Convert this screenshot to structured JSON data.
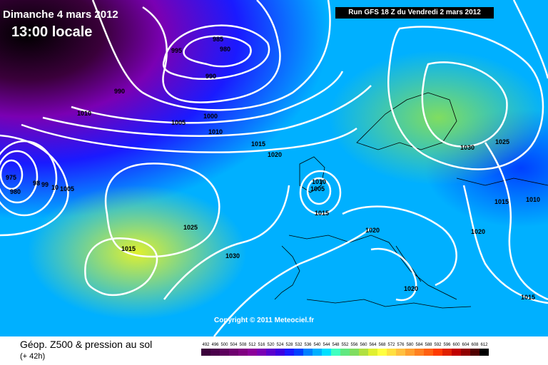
{
  "header": {
    "date": "Dimanche 4 mars 2012",
    "time": "13:00 locale",
    "run": "Run GFS 18 Z du Vendredi 2 mars 2012"
  },
  "copyright": "Copyright © 2011 Meteociel.fr",
  "legend": {
    "title": "Géop. Z500 & pression au sol",
    "subtitle": "(+ 42h)",
    "scale": [
      {
        "label": "492",
        "color": "#3a003a"
      },
      {
        "label": "496",
        "color": "#4a004a"
      },
      {
        "label": "500",
        "color": "#5c005c"
      },
      {
        "label": "504",
        "color": "#6e006e"
      },
      {
        "label": "508",
        "color": "#800080"
      },
      {
        "label": "512",
        "color": "#8c0099"
      },
      {
        "label": "516",
        "color": "#7a00b3"
      },
      {
        "label": "520",
        "color": "#5a00cc"
      },
      {
        "label": "524",
        "color": "#3c00e0"
      },
      {
        "label": "528",
        "color": "#1a1aff"
      },
      {
        "label": "532",
        "color": "#0040ff"
      },
      {
        "label": "536",
        "color": "#0080ff"
      },
      {
        "label": "540",
        "color": "#00b0ff"
      },
      {
        "label": "544",
        "color": "#00e0ff"
      },
      {
        "label": "548",
        "color": "#40ffc0"
      },
      {
        "label": "552",
        "color": "#60e880"
      },
      {
        "label": "556",
        "color": "#80dd60"
      },
      {
        "label": "560",
        "color": "#b0e040"
      },
      {
        "label": "564",
        "color": "#e0f030"
      },
      {
        "label": "568",
        "color": "#ffff40"
      },
      {
        "label": "572",
        "color": "#ffe040"
      },
      {
        "label": "576",
        "color": "#ffc040"
      },
      {
        "label": "580",
        "color": "#ffa030"
      },
      {
        "label": "584",
        "color": "#ff8020"
      },
      {
        "label": "588",
        "color": "#ff6010"
      },
      {
        "label": "592",
        "color": "#ff3a00"
      },
      {
        "label": "596",
        "color": "#e02000"
      },
      {
        "label": "600",
        "color": "#c00000"
      },
      {
        "label": "604",
        "color": "#900000"
      },
      {
        "label": "608",
        "color": "#500000"
      },
      {
        "label": "612",
        "color": "#000000"
      }
    ]
  },
  "isobars": [
    {
      "label": "985"
    },
    {
      "label": "980"
    },
    {
      "label": "995"
    },
    {
      "label": "990"
    },
    {
      "label": "990"
    },
    {
      "label": "1010"
    },
    {
      "label": "1000"
    },
    {
      "label": "1005"
    },
    {
      "label": "1010"
    },
    {
      "label": "1015"
    },
    {
      "label": "1020"
    },
    {
      "label": "1010"
    },
    {
      "label": "1005"
    },
    {
      "label": "1015"
    },
    {
      "label": "975"
    },
    {
      "label": "980"
    },
    {
      "label": "98"
    },
    {
      "label": "99"
    },
    {
      "label": "10"
    },
    {
      "label": "1005"
    },
    {
      "label": "1025"
    },
    {
      "label": "1015"
    },
    {
      "label": "1030"
    },
    {
      "label": "1020"
    },
    {
      "label": "1020"
    },
    {
      "label": "1030"
    },
    {
      "label": "1025"
    },
    {
      "label": "1015"
    },
    {
      "label": "1010"
    },
    {
      "label": "1020"
    },
    {
      "label": "1015"
    }
  ]
}
